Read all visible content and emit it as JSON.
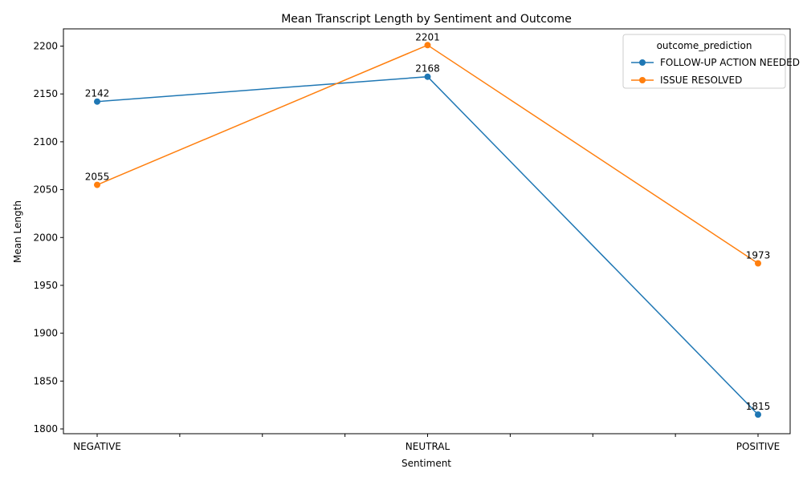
{
  "chart_data": {
    "type": "line",
    "title": "Mean Transcript Length by Sentiment and Outcome",
    "xlabel": "Sentiment",
    "ylabel": "Mean Length",
    "categories": [
      "NEGATIVE",
      "NEUTRAL",
      "POSITIVE"
    ],
    "ylim": [
      1795,
      2218
    ],
    "yticks": [
      1800,
      1850,
      1900,
      1950,
      2000,
      2050,
      2100,
      2150,
      2200
    ],
    "grid": false,
    "legend": {
      "title": "outcome_prediction",
      "placement": "top-right"
    },
    "series": [
      {
        "name": "FOLLOW-UP ACTION NEEDED",
        "color": "#1f77b4",
        "values": [
          2142,
          2168,
          1815
        ]
      },
      {
        "name": "ISSUE RESOLVED",
        "color": "#ff7f0e",
        "values": [
          2055,
          2201,
          1973
        ]
      }
    ]
  }
}
